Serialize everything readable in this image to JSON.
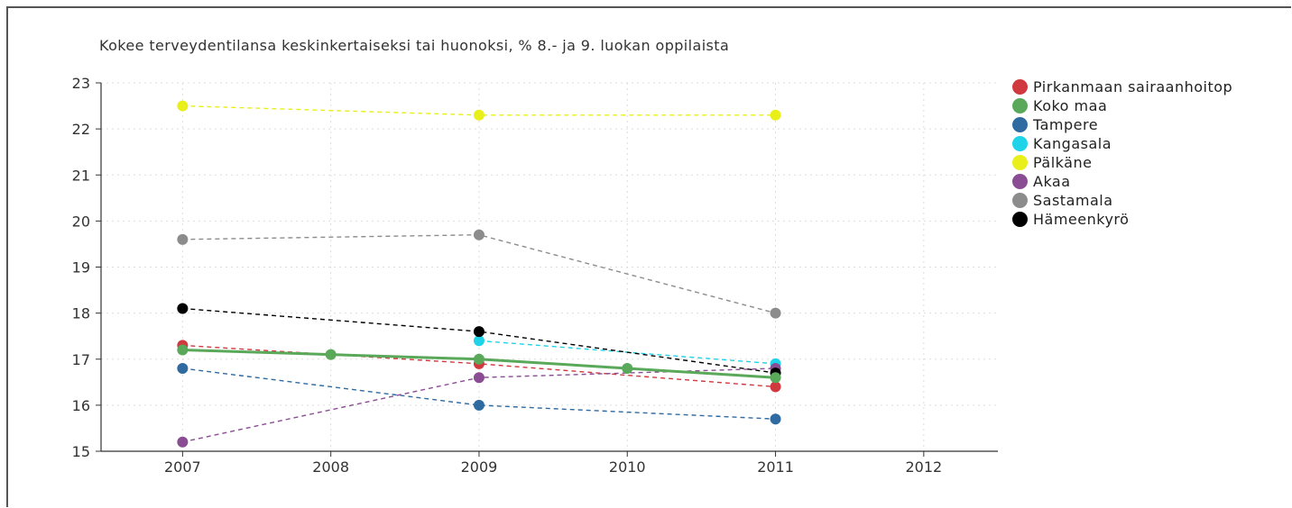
{
  "chart_data": {
    "type": "line",
    "title": "Kokee terveydentilansa keskinkertaiseksi tai huonoksi, % 8.- ja 9. luokan oppilaista",
    "xlabel": "",
    "ylabel": "",
    "x_ticks": [
      2007,
      2008,
      2009,
      2010,
      2011,
      2012
    ],
    "xlim": [
      2006.45,
      2012.5
    ],
    "y_ticks": [
      15,
      16,
      17,
      18,
      19,
      20,
      21,
      22,
      23
    ],
    "ylim": [
      15,
      23
    ],
    "grid": true,
    "legend_position": "right",
    "series": [
      {
        "name": "Pirkanmaan sairaanhoitop",
        "color": "#d0393e",
        "style": "dashed",
        "x": [
          2007,
          2009,
          2011
        ],
        "y": [
          17.3,
          16.9,
          16.4
        ]
      },
      {
        "name": "Koko maa",
        "color": "#5aa85a",
        "style": "solid",
        "x": [
          2007,
          2008,
          2009,
          2010,
          2011
        ],
        "y": [
          17.2,
          17.1,
          17.0,
          16.8,
          16.6
        ]
      },
      {
        "name": "Tampere",
        "color": "#2f6aa0",
        "style": "dashed",
        "x": [
          2007,
          2009,
          2011
        ],
        "y": [
          16.8,
          16.0,
          15.7
        ]
      },
      {
        "name": "Kangasala",
        "color": "#1fd3e8",
        "style": "dashed",
        "x": [
          2009,
          2011
        ],
        "y": [
          17.4,
          16.9
        ]
      },
      {
        "name": "Pälkäne",
        "color": "#e8ef1a",
        "style": "dashed",
        "x": [
          2007,
          2009,
          2011
        ],
        "y": [
          22.5,
          22.3,
          22.3
        ]
      },
      {
        "name": "Akaa",
        "color": "#8a4d93",
        "style": "dashed",
        "x": [
          2007,
          2009,
          2011
        ],
        "y": [
          15.2,
          16.6,
          16.8
        ]
      },
      {
        "name": "Sastamala",
        "color": "#8c8c8c",
        "style": "dashed",
        "x": [
          2007,
          2009,
          2011
        ],
        "y": [
          19.6,
          19.7,
          18.0
        ]
      },
      {
        "name": "Hämeenkyrö",
        "color": "#000000",
        "style": "dashed",
        "x": [
          2007,
          2009,
          2011
        ],
        "y": [
          18.1,
          17.6,
          16.7
        ]
      }
    ]
  }
}
